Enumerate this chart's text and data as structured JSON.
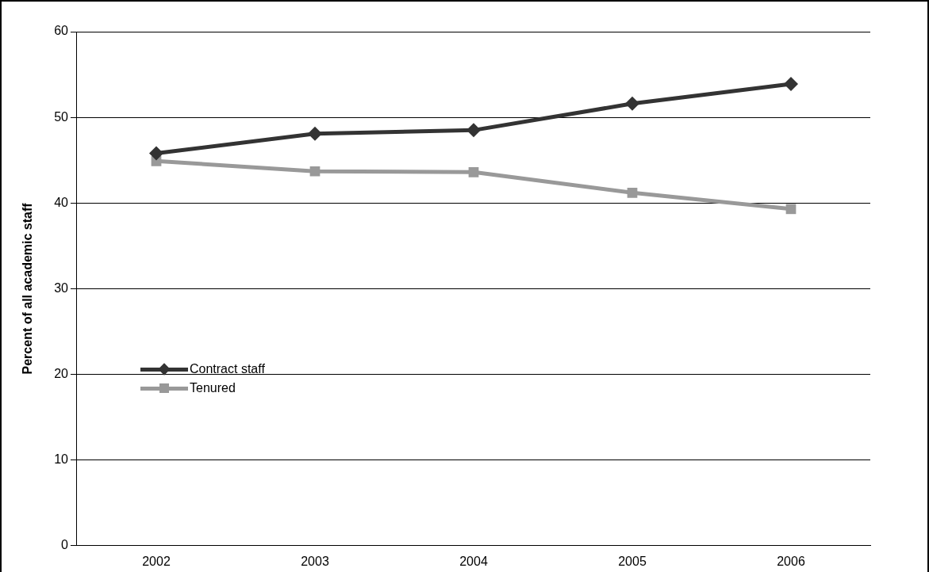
{
  "chart_data": {
    "type": "line",
    "ylabel": "Percent of all academic staff",
    "categories": [
      "2002",
      "2003",
      "2004",
      "2005",
      "2006"
    ],
    "series": [
      {
        "name": "Contract staff",
        "color": "#333333",
        "marker": "diamond",
        "values": [
          45.8,
          48.1,
          48.5,
          51.6,
          53.9
        ]
      },
      {
        "name": "Tenured",
        "color": "#999999",
        "marker": "square",
        "values": [
          44.9,
          43.7,
          43.6,
          41.2,
          39.3
        ]
      }
    ],
    "ylim": [
      0,
      60
    ],
    "yticks": [
      0,
      10,
      20,
      30,
      40,
      50,
      60
    ],
    "grid": "y",
    "legend": "bottom left",
    "line_style": "solid"
  }
}
